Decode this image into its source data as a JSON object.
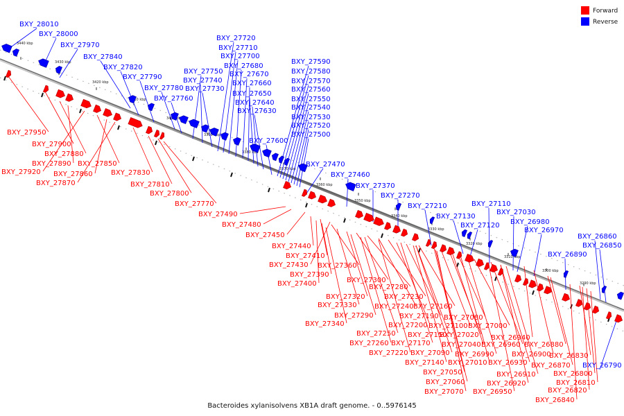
{
  "caption": "Bacteroides xylanisolvens XB1A draft genome. - 0..5976145",
  "legend": [
    {
      "label": "Forward",
      "color": "#ff0000"
    },
    {
      "label": "Reverse",
      "color": "#0000ff"
    }
  ],
  "colors": {
    "forward": "#ff0000",
    "reverse": "#0000ff",
    "axis": "#808080"
  },
  "ticks": [
    "3440 kbp",
    "3430 kbp",
    "3420 kbp",
    "3410 kbp",
    "3400 kbp",
    "3390 kbp",
    "3380 kbp",
    "3370 kbp",
    "3360 kbp",
    "3350 kbp",
    "3340 kbp",
    "3330 kbp",
    "3320 kbp",
    "3310 kbp",
    "3300 kbp",
    "3290 kbp"
  ],
  "reverse_genes": [
    "BXY_28010",
    "BXY_28000",
    "BXY_27970",
    "BXY_27840",
    "BXY_27820",
    "BXY_27790",
    "BXY_27780",
    "BXY_27760",
    "BXY_27750",
    "BXY_27740",
    "BXY_27730",
    "BXY_27720",
    "BXY_27710",
    "BXY_27700",
    "BXY_27680",
    "BXY_27670",
    "BXY_27660",
    "BXY_27650",
    "BXY_27640",
    "BXY_27630",
    "BXY_27600",
    "BXY_27590",
    "BXY_27580",
    "BXY_27570",
    "BXY_27560",
    "BXY_27550",
    "BXY_27540",
    "BXY_27530",
    "BXY_27520",
    "BXY_27500",
    "BXY_27470",
    "BXY_27460",
    "BXY_27370",
    "BXY_27270",
    "BXY_27210",
    "BXY_27130",
    "BXY_27120",
    "BXY_27110",
    "BXY_27030",
    "BXY_26980",
    "BXY_26970",
    "BXY_26890",
    "BXY_26860",
    "BXY_26850",
    "BXY_26790"
  ],
  "forward_genes": [
    "BXY_27950",
    "BXY_27900",
    "BXY_27880",
    "BXY_27890",
    "BXY_27920",
    "BXY_27850",
    "BXY_27860",
    "BXY_27870",
    "BXY_27830",
    "BXY_27810",
    "BXY_27800",
    "BXY_27770",
    "BXY_27490",
    "BXY_27480",
    "BXY_27450",
    "BXY_27440",
    "BXY_27410",
    "BXY_27430",
    "BXY_27360",
    "BXY_27390",
    "BXY_27400",
    "BXY_27300",
    "BXY_27280",
    "BXY_27320",
    "BXY_27230",
    "BXY_27330",
    "BXY_27240",
    "BXY_27160",
    "BXY_27290",
    "BXY_27190",
    "BXY_27080",
    "BXY_27340",
    "BXY_27200",
    "BXY_27100",
    "BXY_27000",
    "BXY_27150",
    "BXY_27020",
    "BXY_27250",
    "BXY_27170",
    "BXY_27040",
    "BXY_26940",
    "BXY_27260",
    "BXY_27090",
    "BXY_26990",
    "BXY_26960",
    "BXY_26880",
    "BXY_27220",
    "BXY_27140",
    "BXY_27010",
    "BXY_26930",
    "BXY_26900",
    "BXY_26870",
    "BXY_26830",
    "BXY_27050",
    "BXY_26910",
    "BXY_26800",
    "BXY_27060",
    "BXY_26920",
    "BXY_26810",
    "BXY_27070",
    "BXY_26950",
    "BXY_26820",
    "BXY_26840"
  ]
}
